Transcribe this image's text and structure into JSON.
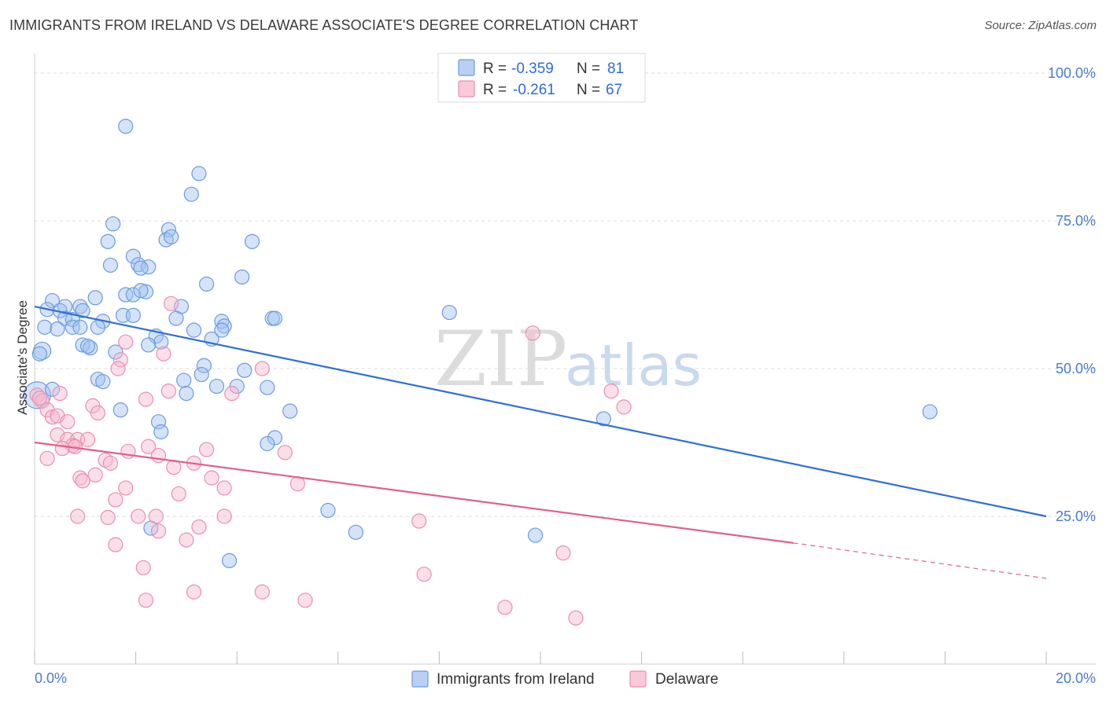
{
  "title": "IMMIGRANTS FROM IRELAND VS DELAWARE ASSOCIATE'S DEGREE CORRELATION CHART",
  "source": "Source: ZipAtlas.com",
  "watermark": {
    "zip": "ZIP",
    "atlas": "atlas"
  },
  "legend_top": {
    "r_label": "R =",
    "n_label": "N =",
    "entries": [
      {
        "r": "-0.359",
        "n": "81"
      },
      {
        "r": "-0.261",
        "n": "67"
      }
    ]
  },
  "chart_data": {
    "type": "scatter",
    "title": "IMMIGRANTS FROM IRELAND VS DELAWARE ASSOCIATE'S DEGREE CORRELATION CHART",
    "xlabel": "",
    "ylabel": "Associate's Degree",
    "xlim": [
      0,
      20
    ],
    "ylim": [
      0,
      102
    ],
    "x_tick_labels": [
      "0.0%",
      "20.0%"
    ],
    "y_ticks": [
      25,
      50,
      75,
      100
    ],
    "y_tick_labels": [
      "25.0%",
      "50.0%",
      "75.0%",
      "100.0%"
    ],
    "grid": true,
    "legend_placement": "top-center",
    "colors": {
      "series1": "#5b8fdb",
      "series2": "#e87aa0",
      "line1": "#2f6fd4",
      "line2": "#e0608c"
    },
    "series": [
      {
        "name": "Immigrants from Ireland",
        "r": -0.359,
        "n": 81,
        "trend": {
          "x0": 0.0,
          "y0": 60.5,
          "x1": 20.0,
          "y1": 25.0
        },
        "points": [
          [
            1.8,
            91.0
          ],
          [
            3.25,
            83.0
          ],
          [
            3.1,
            79.5
          ],
          [
            1.55,
            74.5
          ],
          [
            2.65,
            73.5
          ],
          [
            1.45,
            71.5
          ],
          [
            2.6,
            71.8
          ],
          [
            2.7,
            72.3
          ],
          [
            4.3,
            71.5
          ],
          [
            1.95,
            69.0
          ],
          [
            1.5,
            67.5
          ],
          [
            2.05,
            67.6
          ],
          [
            2.25,
            67.2
          ],
          [
            2.1,
            67.0
          ],
          [
            4.1,
            65.5
          ],
          [
            3.4,
            64.3
          ],
          [
            2.2,
            63.0
          ],
          [
            1.8,
            62.5
          ],
          [
            1.95,
            62.5
          ],
          [
            1.2,
            62.0
          ],
          [
            0.35,
            61.5
          ],
          [
            0.25,
            60.0
          ],
          [
            0.6,
            60.5
          ],
          [
            0.9,
            60.5
          ],
          [
            0.5,
            59.8
          ],
          [
            0.95,
            59.8
          ],
          [
            2.9,
            60.5
          ],
          [
            0.6,
            58.5
          ],
          [
            0.75,
            58.3
          ],
          [
            1.35,
            58.0
          ],
          [
            1.75,
            59.0
          ],
          [
            1.95,
            59.0
          ],
          [
            2.8,
            58.5
          ],
          [
            3.7,
            58.0
          ],
          [
            4.7,
            58.5
          ],
          [
            4.75,
            58.5
          ],
          [
            8.2,
            59.5
          ],
          [
            0.2,
            57.0
          ],
          [
            0.45,
            56.7
          ],
          [
            0.75,
            57.0
          ],
          [
            0.9,
            57.0
          ],
          [
            1.25,
            57.0
          ],
          [
            3.15,
            56.5
          ],
          [
            3.75,
            57.2
          ],
          [
            3.7,
            56.5
          ],
          [
            2.4,
            55.5
          ],
          [
            3.5,
            55.0
          ],
          [
            2.5,
            54.5
          ],
          [
            0.95,
            54.0
          ],
          [
            1.1,
            53.5
          ],
          [
            1.05,
            53.8
          ],
          [
            2.25,
            54.0
          ],
          [
            1.6,
            52.8
          ],
          [
            0.15,
            53.0
          ],
          [
            0.1,
            52.5
          ],
          [
            3.35,
            50.5
          ],
          [
            4.15,
            49.7
          ],
          [
            3.3,
            49.0
          ],
          [
            1.25,
            48.2
          ],
          [
            1.35,
            47.8
          ],
          [
            2.95,
            48.0
          ],
          [
            3.6,
            47.0
          ],
          [
            4.0,
            47.0
          ],
          [
            4.6,
            46.8
          ],
          [
            3.0,
            45.8
          ],
          [
            0.05,
            45.5
          ],
          [
            1.7,
            43.0
          ],
          [
            5.05,
            42.8
          ],
          [
            17.7,
            42.7
          ],
          [
            11.25,
            41.5
          ],
          [
            2.45,
            41.0
          ],
          [
            2.5,
            39.3
          ],
          [
            4.75,
            38.3
          ],
          [
            4.6,
            37.3
          ],
          [
            5.8,
            26.0
          ],
          [
            6.35,
            22.3
          ],
          [
            9.9,
            21.8
          ],
          [
            2.3,
            23.0
          ],
          [
            3.85,
            17.5
          ],
          [
            0.35,
            46.5
          ],
          [
            2.1,
            63.2
          ]
        ]
      },
      {
        "name": "Delaware",
        "r": -0.261,
        "n": 67,
        "trend": {
          "x0": 0.0,
          "y0": 37.5,
          "x1": 15.0,
          "y1": 20.5,
          "dash_to_x": 20.0,
          "dash_to_y": 14.5
        },
        "points": [
          [
            2.7,
            61.0
          ],
          [
            9.85,
            56.0
          ],
          [
            1.8,
            54.5
          ],
          [
            2.55,
            52.5
          ],
          [
            1.7,
            51.5
          ],
          [
            1.65,
            50.0
          ],
          [
            4.5,
            50.0
          ],
          [
            11.4,
            46.2
          ],
          [
            2.65,
            46.2
          ],
          [
            3.9,
            45.8
          ],
          [
            0.5,
            45.8
          ],
          [
            0.05,
            45.5
          ],
          [
            0.15,
            44.5
          ],
          [
            2.2,
            44.8
          ],
          [
            0.25,
            43.0
          ],
          [
            1.15,
            43.7
          ],
          [
            11.65,
            43.5
          ],
          [
            1.25,
            42.5
          ],
          [
            0.35,
            41.8
          ],
          [
            0.45,
            42.0
          ],
          [
            0.65,
            41.0
          ],
          [
            0.45,
            38.8
          ],
          [
            0.65,
            38.0
          ],
          [
            0.85,
            38.0
          ],
          [
            1.05,
            38.0
          ],
          [
            0.75,
            37.0
          ],
          [
            0.55,
            36.5
          ],
          [
            2.25,
            36.8
          ],
          [
            1.85,
            36.0
          ],
          [
            3.4,
            36.3
          ],
          [
            4.95,
            35.8
          ],
          [
            2.45,
            35.3
          ],
          [
            0.25,
            34.8
          ],
          [
            1.4,
            34.5
          ],
          [
            1.5,
            34.0
          ],
          [
            2.75,
            33.3
          ],
          [
            3.15,
            34.0
          ],
          [
            1.2,
            32.0
          ],
          [
            0.9,
            31.5
          ],
          [
            0.95,
            31.0
          ],
          [
            3.5,
            31.5
          ],
          [
            5.2,
            30.5
          ],
          [
            1.8,
            29.8
          ],
          [
            3.75,
            29.8
          ],
          [
            2.85,
            28.8
          ],
          [
            1.6,
            27.8
          ],
          [
            0.85,
            25.0
          ],
          [
            1.45,
            24.8
          ],
          [
            2.05,
            25.0
          ],
          [
            2.4,
            25.0
          ],
          [
            3.75,
            25.0
          ],
          [
            7.6,
            24.2
          ],
          [
            3.25,
            23.2
          ],
          [
            2.45,
            22.5
          ],
          [
            3.0,
            21.0
          ],
          [
            1.6,
            20.2
          ],
          [
            10.45,
            18.8
          ],
          [
            2.15,
            16.3
          ],
          [
            7.7,
            15.2
          ],
          [
            3.15,
            12.2
          ],
          [
            4.5,
            12.2
          ],
          [
            2.2,
            10.8
          ],
          [
            5.35,
            10.8
          ],
          [
            9.3,
            9.6
          ],
          [
            10.7,
            7.8
          ],
          [
            0.1,
            45.0
          ],
          [
            0.8,
            36.8
          ]
        ]
      }
    ]
  },
  "bottom_legend": [
    "Immigrants from Ireland",
    "Delaware"
  ]
}
